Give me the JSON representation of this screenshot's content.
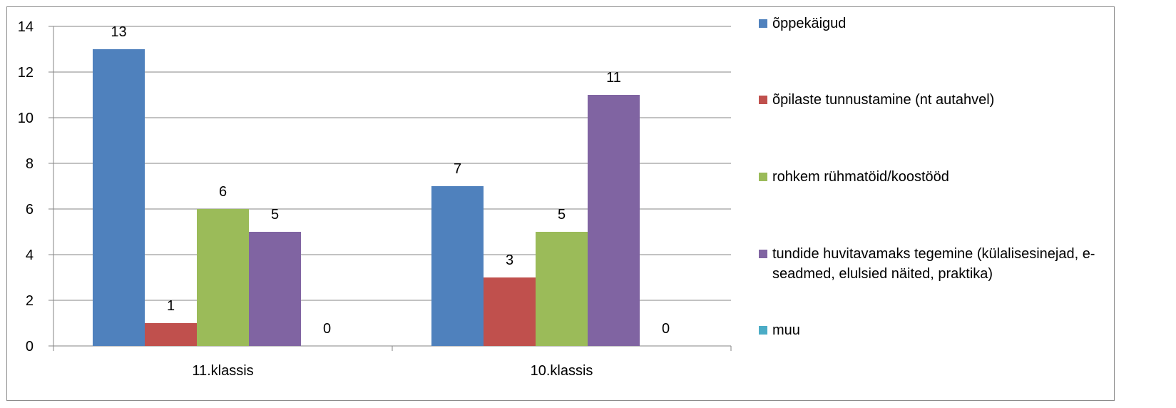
{
  "chart_data": {
    "type": "bar",
    "categories": [
      "11.klassis",
      "10.klassis"
    ],
    "series": [
      {
        "name": "õppekäigud",
        "color": "#4F81BD",
        "values": [
          13,
          7
        ]
      },
      {
        "name": "õpilaste tunnustamine (nt autahvel)",
        "color": "#C0504D",
        "values": [
          1,
          3
        ]
      },
      {
        "name": "rohkem rühmatöid/koostööd",
        "color": "#9BBB59",
        "values": [
          6,
          5
        ]
      },
      {
        "name": "tundide huvitavamaks tegemine (külalisesinejad, e-seadmed, elulsied näited, praktika)",
        "color": "#8064A2",
        "values": [
          5,
          11
        ]
      },
      {
        "name": "muu",
        "color": "#4BACC6",
        "values": [
          0,
          0
        ]
      }
    ],
    "ylim": [
      0,
      14
    ],
    "yticks": [
      0,
      2,
      4,
      6,
      8,
      10,
      12,
      14
    ],
    "grid": true,
    "data_labels": true,
    "legend_position": "right",
    "title": "",
    "xlabel": "",
    "ylabel": ""
  }
}
